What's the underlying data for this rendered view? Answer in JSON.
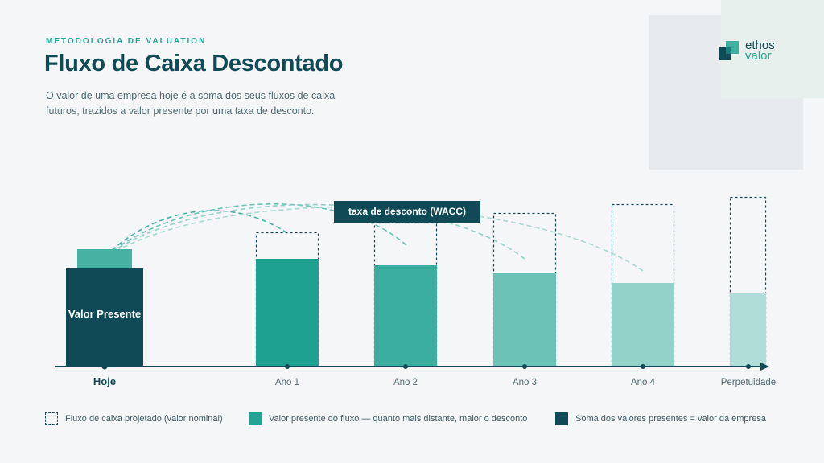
{
  "header": {
    "eyebrow": "METODOLOGIA DE VALUATION",
    "title": "Fluxo de Caixa Descontado",
    "subtitle": "O valor de uma empresa hoje é a soma dos seus fluxos de caixa futuros, trazidos a valor presente por uma taxa de desconto."
  },
  "logo": {
    "line1": "ethos",
    "line2": "valor"
  },
  "diagram": {
    "present_value_label": "Valor Presente",
    "discount_label": "taxa de desconto (WACC)",
    "periods": [
      {
        "label": "Hoje",
        "projected": null,
        "present": 1.0
      },
      {
        "label": "Ano 1",
        "projected": 1.0,
        "present": 0.8
      },
      {
        "label": "Ano 2",
        "projected": 1.08,
        "present": 0.75
      },
      {
        "label": "Ano 3",
        "projected": 1.15,
        "present": 0.68
      },
      {
        "label": "Ano 4",
        "projected": 1.21,
        "present": 0.6
      },
      {
        "label": "Perpetuidade",
        "projected": 1.3,
        "present": 0.55
      }
    ],
    "colors": {
      "dark": "#0f4a56",
      "present_steps": [
        "#1fa191",
        "#3cae9f",
        "#6bc2b6",
        "#93d2c9",
        "#b1ddd8"
      ],
      "accent": "#45b2a4"
    }
  },
  "legend": [
    {
      "label": "Fluxo de caixa projetado (valor nominal)"
    },
    {
      "label": "Valor presente do fluxo — quanto mais distante, maior o desconto"
    },
    {
      "label": "Soma dos valores presentes = valor da empresa"
    }
  ]
}
